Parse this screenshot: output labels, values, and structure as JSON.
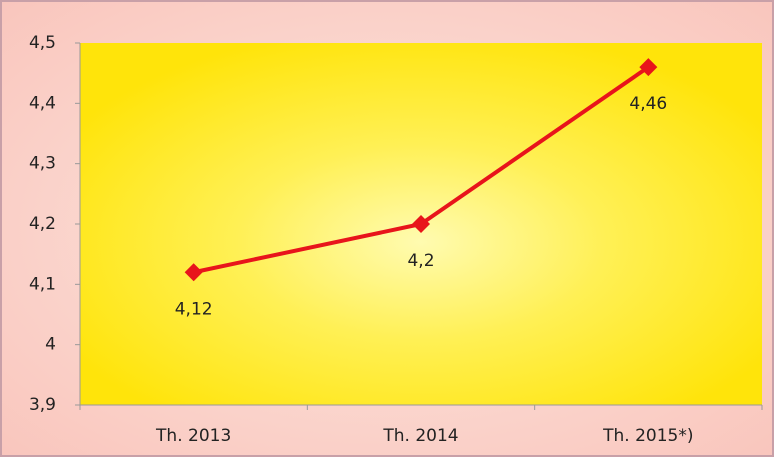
{
  "chart_data": {
    "type": "line",
    "categories": [
      "Th. 2013",
      "Th. 2014",
      "Th. 2015*)"
    ],
    "values": [
      4.12,
      4.2,
      4.46
    ],
    "value_labels": [
      "4,12",
      "4,2",
      "4,46"
    ],
    "color": "#e8141b",
    "ylim": [
      3.9,
      4.5
    ],
    "yticks": [
      {
        "value": 3.9,
        "label": "3,9"
      },
      4,
      {
        "value": 4.1,
        "label": "4,1"
      },
      {
        "value": 4.2,
        "label": "4,2"
      },
      {
        "value": 4.3,
        "label": "4,3"
      },
      {
        "value": 4.4,
        "label": "4,4"
      },
      {
        "value": 4.5,
        "label": "4,5"
      }
    ],
    "grid": false
  }
}
